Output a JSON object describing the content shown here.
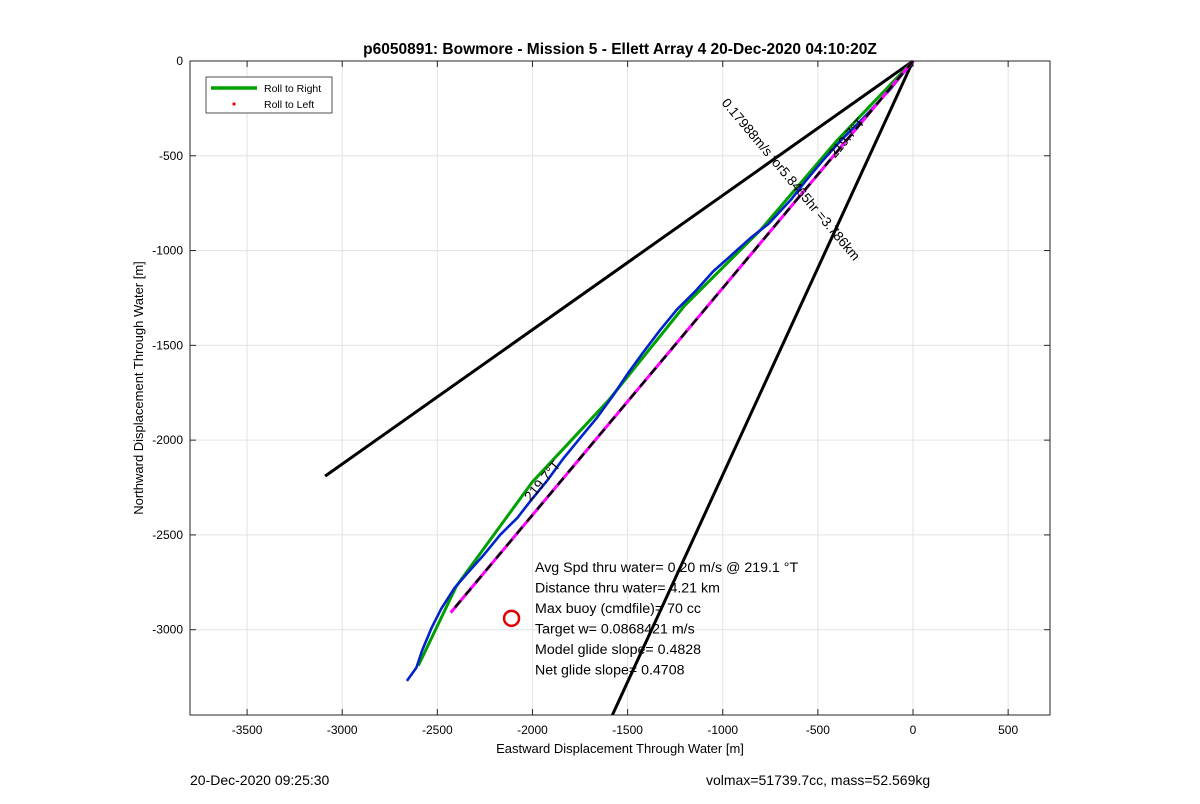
{
  "chart_data": {
    "type": "line",
    "title": "p6050891: Bowmore - Mission 5 - Ellett Array 4 20-Dec-2020 04:10:20Z",
    "xlabel": "Eastward Displacement Through Water [m]",
    "ylabel": "Northward Displacement Through Water [m]",
    "xlim": [
      -3800,
      720
    ],
    "ylim": [
      -3450,
      0
    ],
    "xticks": [
      -3500,
      -3000,
      -2500,
      -2000,
      -1500,
      -1000,
      -500,
      0,
      500
    ],
    "yticks": [
      0,
      -500,
      -1000,
      -1500,
      -2000,
      -2500,
      -3000
    ],
    "xtick_labels": [
      "-3500",
      "-3000",
      "-2500",
      "-2000",
      "-1500",
      "-1000",
      "-500",
      "0",
      "500"
    ],
    "ytick_labels": [
      "0",
      "-500",
      "-1000",
      "-1500",
      "-2000",
      "-2500",
      "-3000"
    ],
    "grid": true,
    "legend": {
      "position": "top-left",
      "entries": [
        "Roll to Right",
        "Roll to Left"
      ]
    },
    "colors": {
      "roll_right": "#00a000",
      "roll_left": "#ff0000",
      "track": "#0022cc",
      "heading_line": "#ff00ff",
      "cone": "#000000",
      "target": "#e00000"
    },
    "series": [
      {
        "name": "Roll to Right",
        "x": [
          0,
          -400,
          -800,
          -1200,
          -1600,
          -2000,
          -2400,
          -2600
        ],
        "y": [
          0,
          -420,
          -890,
          -1290,
          -1790,
          -2220,
          -2770,
          -3190
        ]
      },
      {
        "name": "Roll to Left",
        "x": [],
        "y": []
      },
      {
        "name": "",
        "x": [
          0,
          -120,
          -260,
          -380,
          -470,
          -570,
          -640,
          -760,
          -850,
          -950,
          -1050,
          -1140,
          -1240,
          -1330,
          -1420,
          -1500,
          -1580,
          -1660,
          -1750,
          -1840,
          -1920,
          -2010,
          -2080,
          -2170,
          -2260,
          -2340,
          -2410,
          -2480,
          -2530,
          -2580,
          -2610,
          -2660
        ],
        "y": [
          0,
          -150,
          -300,
          -420,
          -520,
          -640,
          -730,
          -860,
          -930,
          -1020,
          -1110,
          -1210,
          -1310,
          -1420,
          -1540,
          -1650,
          -1770,
          -1880,
          -1990,
          -2100,
          -2210,
          -2320,
          -2410,
          -2500,
          -2610,
          -2700,
          -2780,
          -2890,
          -2990,
          -3110,
          -3200,
          -3270
        ]
      },
      {
        "name": "",
        "x": [
          0,
          -2430
        ],
        "y": [
          0,
          -2910
        ]
      }
    ],
    "cone_lines": [
      {
        "x": [
          0,
          -3090
        ],
        "y": [
          0,
          -2190
        ]
      },
      {
        "x": [
          0,
          -1580
        ],
        "y": [
          0,
          -3450
        ]
      }
    ],
    "target_marker": {
      "x": -2110,
      "y": -2940
    },
    "annotations": {
      "heading_1": {
        "text": "219.7°T",
        "x": -330,
        "y": -420,
        "rotation": -50
      },
      "heading_2": {
        "text": "219.7°T",
        "x": -1930,
        "y": -2230,
        "rotation": -50
      },
      "segment_speed": {
        "text": "0.17988m/s for5.8465hr =3.786km",
        "x": -660,
        "y": -640,
        "rotation": 50
      },
      "stats": [
        "Avg Spd thru water=  0.20 m/s @ 219.1 °T",
        "Distance thru water=  4.21 km",
        "Max buoy (cmdfile)= 70 cc",
        "Target w= 0.0868421 m/s",
        "Model glide slope= 0.4828",
        "Net glide slope= 0.4708"
      ]
    }
  },
  "footer": {
    "left": "20-Dec-2020 09:25:30",
    "right": "volmax=51739.7cc, mass=52.569kg"
  }
}
